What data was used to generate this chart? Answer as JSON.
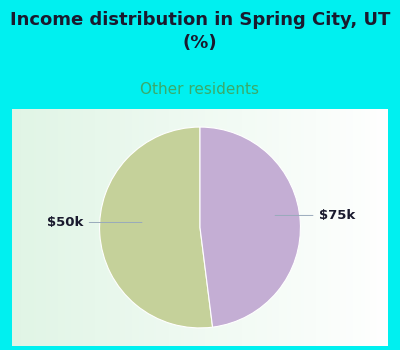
{
  "title": "Income distribution in Spring City, UT\n(%)",
  "subtitle": "Other residents",
  "slices": [
    52,
    48
  ],
  "labels": [
    "$50k",
    "$75k"
  ],
  "colors": [
    "#c5d19a",
    "#c4aed4"
  ],
  "background_color": "#00f0f0",
  "chart_bg_color": "#ffffff",
  "title_color": "#1a1a2e",
  "subtitle_color": "#3aaa6a",
  "label_color": "#1a1a2e",
  "label_fontsize": 9.5,
  "title_fontsize": 13,
  "subtitle_fontsize": 11,
  "startangle": 90,
  "border_width": 5
}
